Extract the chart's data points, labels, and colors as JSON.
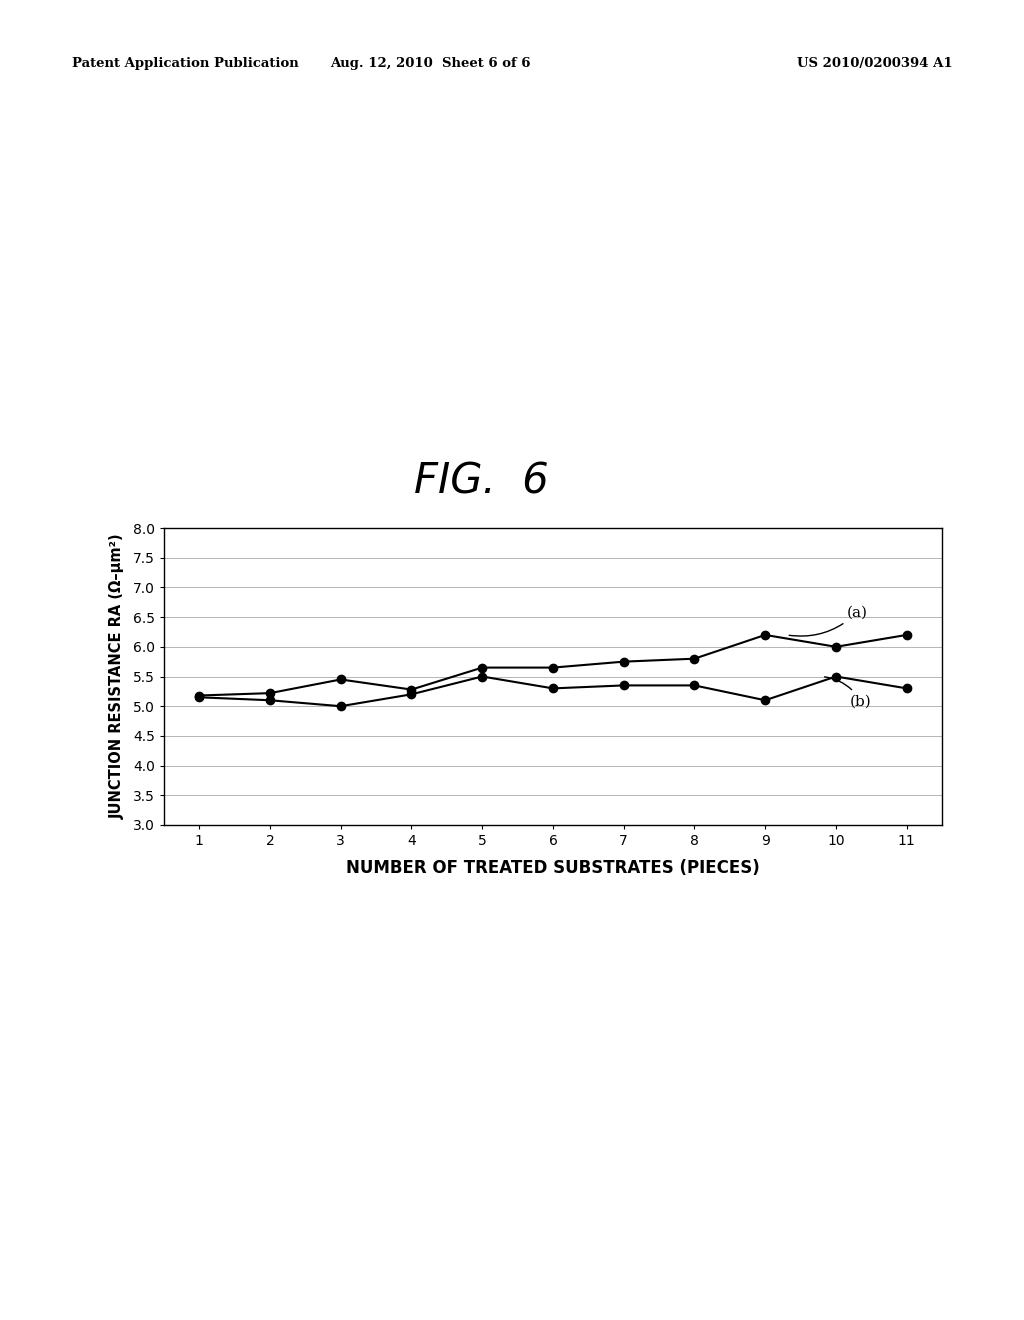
{
  "title": "FIG.  6",
  "xlabel": "NUMBER OF TREATED SUBSTRATES (PIECES)",
  "ylabel": "JUNCTION RESISTANCE RA (Ω–μm²)",
  "series_a_label": "(a)",
  "series_b_label": "(b)",
  "x": [
    1,
    2,
    3,
    4,
    5,
    6,
    7,
    8,
    9,
    10,
    11
  ],
  "series_a": [
    5.18,
    5.22,
    5.45,
    5.28,
    5.65,
    5.65,
    5.75,
    5.8,
    6.2,
    6.0,
    6.2
  ],
  "series_b": [
    5.15,
    5.1,
    5.0,
    5.2,
    5.5,
    5.3,
    5.35,
    5.35,
    5.1,
    5.5,
    5.3
  ],
  "ylim": [
    3.0,
    8.0
  ],
  "yticks": [
    3.0,
    3.5,
    4.0,
    4.5,
    5.0,
    5.5,
    6.0,
    6.5,
    7.0,
    7.5,
    8.0
  ],
  "xlim": [
    0.5,
    11.5
  ],
  "xticks": [
    1,
    2,
    3,
    4,
    5,
    6,
    7,
    8,
    9,
    10,
    11
  ],
  "line_color": "#000000",
  "marker_color": "#000000",
  "background_color": "#ffffff",
  "header_left": "Patent Application Publication",
  "header_center": "Aug. 12, 2010  Sheet 6 of 6",
  "header_right": "US 2010/0200394 A1",
  "title_fontsize": 30,
  "axis_label_fontsize": 11,
  "tick_fontsize": 10,
  "header_fontsize": 9.5,
  "annot_fontsize": 11
}
